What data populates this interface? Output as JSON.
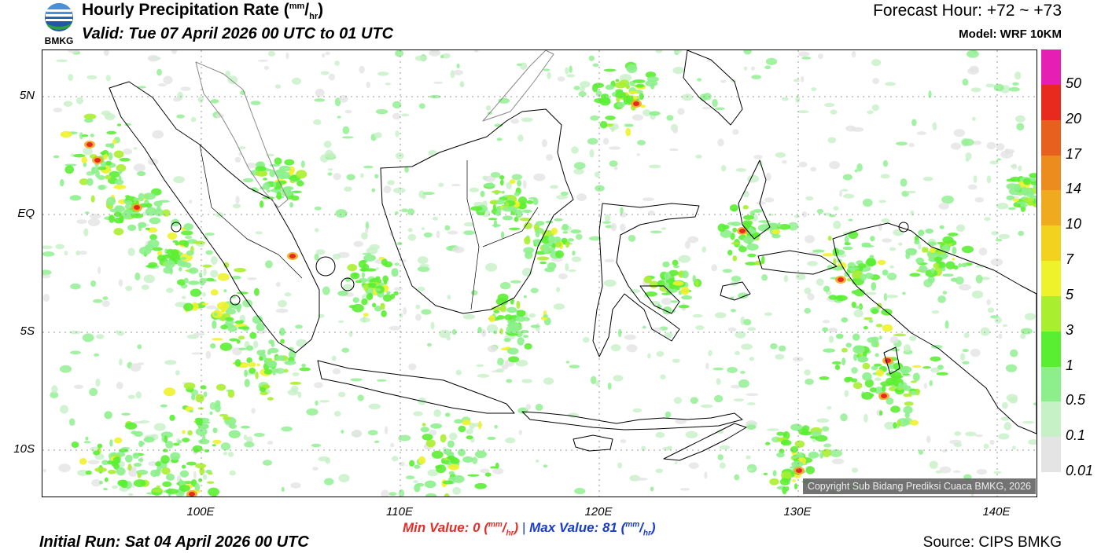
{
  "header": {
    "title_main": "Hourly Precipitation Rate (",
    "title_unit_num": "mm",
    "title_unit_sep": "/",
    "title_unit_den": "hr",
    "title_close": ")",
    "valid": "Valid: Tue 07 April 2026 00 UTC to 01 UTC",
    "forecast_hour": "Forecast Hour: +72 ~ +73",
    "model": "Model: WRF 10KM",
    "logo_text": "BMKG"
  },
  "map": {
    "lat_labels": [
      "5N",
      "EQ",
      "5S",
      "10S"
    ],
    "lon_labels": [
      "100E",
      "110E",
      "120E",
      "130E",
      "140E"
    ],
    "copyright": "Copyright Sub Bidang Prediksi Cuaca BMKG, 2026",
    "background_color": "#ffffff"
  },
  "colorbar": {
    "labels": [
      "50",
      "20",
      "17",
      "14",
      "10",
      "7",
      "5",
      "3",
      "1",
      "0.5",
      "0.1",
      "0.01"
    ],
    "colors": [
      "#e61eb4",
      "#e82a1e",
      "#e8601e",
      "#ec8c1e",
      "#f0aa20",
      "#f2d21e",
      "#eef22a",
      "#aaee30",
      "#5aee32",
      "#8cef8c",
      "#c6f0c6",
      "#e4e4e4"
    ]
  },
  "footer": {
    "min_label": "Min Value:",
    "min_value": "0",
    "separator": "|",
    "max_label": "Max Value:",
    "max_value": "81",
    "unit_num": "mm",
    "unit_den": "hr",
    "initial_run": "Initial Run: Sat 04 April 2026 00 UTC",
    "source": "Source: CIPS BMKG"
  }
}
